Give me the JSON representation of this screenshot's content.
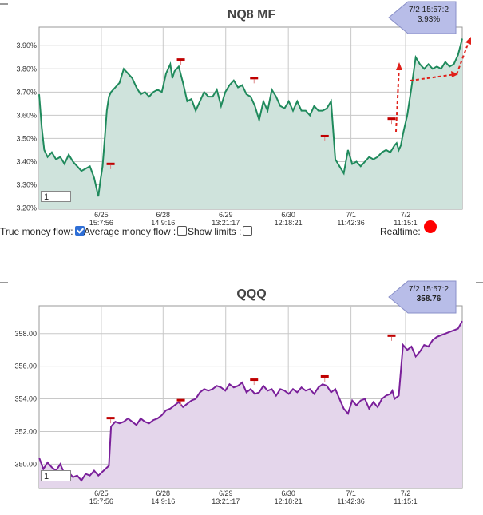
{
  "colors": {
    "chart1_line": "#1f8a5c",
    "chart1_fill": "#cfe3dc",
    "chart2_line": "#7a1f9a",
    "chart2_fill": "#e4d6eb",
    "badge": "#b8bde8",
    "marker": "#c00000",
    "arrow": "#e0201a"
  },
  "controls": {
    "true_money_flow_label": "True money flow:",
    "true_money_flow_checked": true,
    "avg_money_flow_label": "Average money flow :",
    "avg_money_flow_checked": false,
    "show_limits_label": "Show limits :",
    "show_limits_checked": false,
    "realtime_label": "Realtime:"
  },
  "chart_data": [
    {
      "type": "area",
      "title": "NQ8 MF",
      "badge_time": "7/2 15:57:2",
      "badge_value": "3.93%",
      "input_value": "1",
      "ylim": [
        3.195,
        3.98
      ],
      "y_ticks": [
        "3.20%",
        "3.30%",
        "3.40%",
        "3.50%",
        "3.60%",
        "3.70%",
        "3.80%",
        "3.90%"
      ],
      "y_tick_values": [
        3.2,
        3.3,
        3.4,
        3.5,
        3.6,
        3.7,
        3.8,
        3.9
      ],
      "x_ticks": [
        {
          "date": "6/25",
          "time": "15:7:56",
          "t": 0.147
        },
        {
          "date": "6/28",
          "time": "14:9:16",
          "t": 0.293
        },
        {
          "date": "6/29",
          "time": "13:21:17",
          "t": 0.441
        },
        {
          "date": "6/30",
          "time": "12:18:21",
          "t": 0.589
        },
        {
          "date": "7/1",
          "time": "11:42:36",
          "t": 0.737
        },
        {
          "date": "7/2",
          "time": "11:15:1",
          "t": 0.866
        }
      ],
      "x_gridlines": [
        0.147,
        0.293,
        0.441,
        0.589,
        0.737,
        0.866
      ],
      "series": [
        {
          "t": [
            0,
            0.006,
            0.012,
            0.02,
            0.03,
            0.04,
            0.05,
            0.06,
            0.07,
            0.08,
            0.09,
            0.1,
            0.11,
            0.12,
            0.13,
            0.14,
            0.145,
            0.15,
            0.155,
            0.16,
            0.165,
            0.17,
            0.18,
            0.19,
            0.2,
            0.21,
            0.22,
            0.23,
            0.24,
            0.25,
            0.26,
            0.27,
            0.28,
            0.29,
            0.3,
            0.31,
            0.315,
            0.32,
            0.33,
            0.34,
            0.35,
            0.36,
            0.37,
            0.38,
            0.39,
            0.4,
            0.41,
            0.42,
            0.43,
            0.44,
            0.45,
            0.46,
            0.47,
            0.48,
            0.49,
            0.5,
            0.51,
            0.52,
            0.53,
            0.54,
            0.55,
            0.56,
            0.57,
            0.58,
            0.59,
            0.6,
            0.61,
            0.62,
            0.63,
            0.64,
            0.65,
            0.66,
            0.67,
            0.68,
            0.69,
            0.7,
            0.71,
            0.72,
            0.73,
            0.74,
            0.75,
            0.76,
            0.77,
            0.78,
            0.79,
            0.8,
            0.81,
            0.82,
            0.83,
            0.84,
            0.845,
            0.85,
            0.855,
            0.86,
            0.87,
            0.88,
            0.89,
            0.9,
            0.91,
            0.92,
            0.93,
            0.94,
            0.95,
            0.96,
            0.97,
            0.98,
            0.99,
            1.0
          ],
          "y": [
            3.69,
            3.55,
            3.45,
            3.42,
            3.44,
            3.41,
            3.42,
            3.39,
            3.43,
            3.4,
            3.38,
            3.36,
            3.37,
            3.38,
            3.33,
            3.25,
            3.32,
            3.38,
            3.5,
            3.62,
            3.68,
            3.7,
            3.72,
            3.74,
            3.8,
            3.78,
            3.76,
            3.72,
            3.69,
            3.7,
            3.68,
            3.7,
            3.71,
            3.7,
            3.78,
            3.82,
            3.76,
            3.79,
            3.81,
            3.74,
            3.66,
            3.67,
            3.62,
            3.66,
            3.7,
            3.68,
            3.68,
            3.71,
            3.64,
            3.7,
            3.73,
            3.75,
            3.72,
            3.73,
            3.69,
            3.68,
            3.64,
            3.58,
            3.66,
            3.62,
            3.71,
            3.68,
            3.64,
            3.63,
            3.66,
            3.62,
            3.66,
            3.62,
            3.62,
            3.6,
            3.64,
            3.62,
            3.62,
            3.63,
            3.66,
            3.41,
            3.38,
            3.35,
            3.45,
            3.39,
            3.4,
            3.38,
            3.4,
            3.42,
            3.41,
            3.42,
            3.44,
            3.45,
            3.44,
            3.47,
            3.48,
            3.45,
            3.47,
            3.52,
            3.6,
            3.72,
            3.85,
            3.82,
            3.8,
            3.82,
            3.8,
            3.81,
            3.8,
            3.83,
            3.81,
            3.82,
            3.86,
            3.93
          ]
        }
      ],
      "markers": [
        0.169,
        0.335,
        0.508,
        0.675,
        0.833
      ],
      "marker_values": [
        3.385,
        3.835,
        3.755,
        3.505,
        3.58
      ]
    },
    {
      "type": "area",
      "title": "QQQ",
      "badge_time": "7/2 15:57:2",
      "badge_value": "358.76",
      "input_value": "1",
      "ylim": [
        348.55,
        359.7
      ],
      "y_ticks": [
        "350.00",
        "352.00",
        "354.00",
        "356.00",
        "358.00"
      ],
      "y_tick_values": [
        350,
        352,
        354,
        356,
        358
      ],
      "x_ticks": [
        {
          "date": "6/25",
          "time": "15:7:56",
          "t": 0.147
        },
        {
          "date": "6/28",
          "time": "14:9:16",
          "t": 0.293
        },
        {
          "date": "6/29",
          "time": "13:21:17",
          "t": 0.441
        },
        {
          "date": "6/30",
          "time": "12:18:21",
          "t": 0.589
        },
        {
          "date": "7/1",
          "time": "11:42:36",
          "t": 0.737
        },
        {
          "date": "7/2",
          "time": "11:15:1",
          "t": 0.866
        }
      ],
      "x_gridlines": [
        0.147,
        0.293,
        0.441,
        0.589,
        0.737,
        0.866
      ],
      "series": [
        {
          "t": [
            0,
            0.01,
            0.02,
            0.03,
            0.04,
            0.05,
            0.06,
            0.07,
            0.08,
            0.09,
            0.1,
            0.11,
            0.12,
            0.13,
            0.14,
            0.165,
            0.17,
            0.18,
            0.19,
            0.2,
            0.21,
            0.22,
            0.23,
            0.24,
            0.25,
            0.26,
            0.27,
            0.28,
            0.29,
            0.3,
            0.31,
            0.32,
            0.33,
            0.34,
            0.35,
            0.36,
            0.37,
            0.38,
            0.39,
            0.4,
            0.41,
            0.42,
            0.43,
            0.44,
            0.45,
            0.46,
            0.47,
            0.48,
            0.49,
            0.5,
            0.51,
            0.52,
            0.53,
            0.54,
            0.55,
            0.56,
            0.57,
            0.58,
            0.59,
            0.6,
            0.61,
            0.62,
            0.63,
            0.64,
            0.65,
            0.66,
            0.67,
            0.68,
            0.69,
            0.7,
            0.71,
            0.72,
            0.73,
            0.74,
            0.75,
            0.76,
            0.77,
            0.78,
            0.79,
            0.8,
            0.81,
            0.82,
            0.83,
            0.835,
            0.84,
            0.85,
            0.86,
            0.87,
            0.88,
            0.89,
            0.9,
            0.91,
            0.92,
            0.93,
            0.94,
            0.95,
            0.96,
            0.97,
            0.98,
            0.99,
            1.0
          ],
          "y": [
            350.4,
            349.7,
            350.1,
            349.8,
            349.6,
            350.0,
            349.4,
            349.5,
            349.2,
            349.3,
            349.0,
            349.4,
            349.3,
            349.6,
            349.3,
            349.9,
            352.3,
            352.6,
            352.5,
            352.6,
            352.8,
            352.6,
            352.4,
            352.8,
            352.6,
            352.5,
            352.7,
            352.8,
            353.0,
            353.3,
            353.4,
            353.6,
            353.8,
            353.5,
            353.7,
            353.9,
            354.0,
            354.4,
            354.6,
            354.5,
            354.6,
            354.8,
            354.7,
            354.5,
            354.9,
            354.7,
            354.8,
            355.0,
            354.4,
            354.6,
            354.3,
            354.4,
            354.8,
            354.5,
            354.6,
            354.2,
            354.6,
            354.5,
            354.3,
            354.6,
            354.4,
            354.7,
            354.5,
            354.6,
            354.3,
            354.7,
            354.9,
            354.8,
            354.4,
            354.6,
            354.0,
            353.4,
            353.1,
            353.9,
            353.6,
            353.9,
            354.0,
            353.4,
            353.8,
            353.5,
            354.0,
            354.2,
            354.3,
            354.5,
            354.0,
            354.2,
            357.3,
            357.0,
            357.2,
            356.6,
            356.9,
            357.3,
            357.2,
            357.6,
            357.8,
            357.9,
            358.0,
            358.1,
            358.2,
            358.3,
            358.76
          ]
        }
      ],
      "markers": [
        0.169,
        0.335,
        0.508,
        0.675,
        0.833
      ],
      "marker_values": [
        352.75,
        353.85,
        355.1,
        355.3,
        357.8
      ]
    }
  ]
}
